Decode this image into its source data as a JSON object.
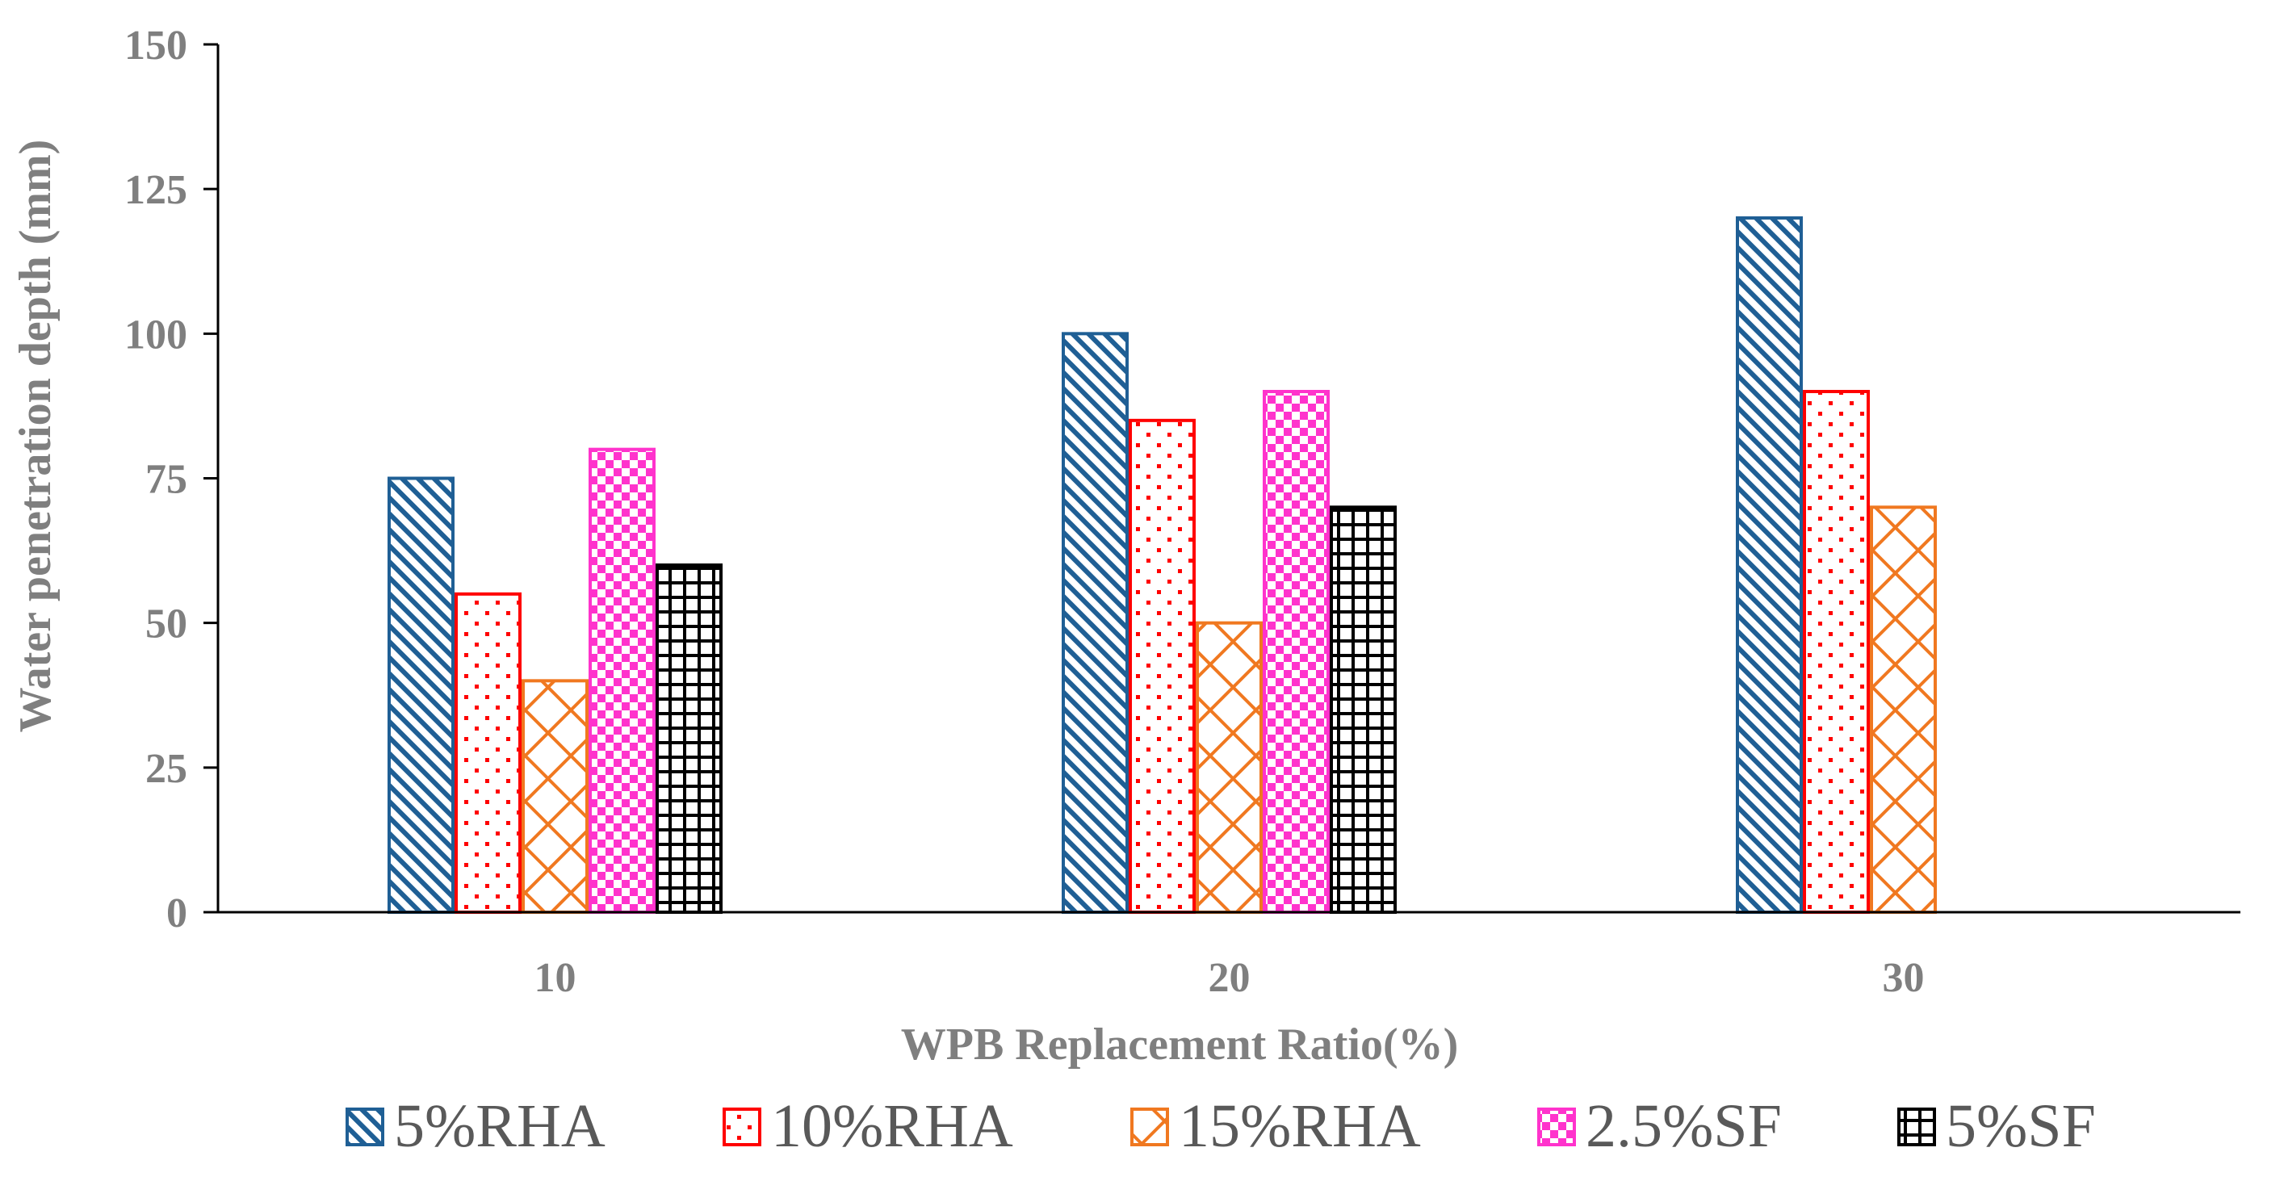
{
  "chart_data": {
    "type": "bar",
    "title": "",
    "xlabel": "WPB Replacement Ratio(%)",
    "ylabel": "Water penetration depth (mm)",
    "categories": [
      "10",
      "20",
      "30"
    ],
    "ylim": [
      0,
      150
    ],
    "yticks": [
      0,
      25,
      50,
      75,
      100,
      125,
      150
    ],
    "grid": false,
    "legend_position": "bottom",
    "series": [
      {
        "name": "5%RHA",
        "values": [
          75,
          100,
          120
        ],
        "color": "#1f5f95",
        "pattern": "diagonal-stripes"
      },
      {
        "name": "10%RHA",
        "values": [
          55,
          85,
          90
        ],
        "color": "#ff0000",
        "pattern": "dots"
      },
      {
        "name": "15%RHA",
        "values": [
          40,
          50,
          70
        ],
        "color": "#f07820",
        "pattern": "crosshatch"
      },
      {
        "name": "2.5%SF",
        "values": [
          80,
          90,
          null
        ],
        "color": "#ff33cc",
        "pattern": "checker"
      },
      {
        "name": "5%SF",
        "values": [
          60,
          70,
          null
        ],
        "color": "#000000",
        "pattern": "grid"
      }
    ]
  }
}
